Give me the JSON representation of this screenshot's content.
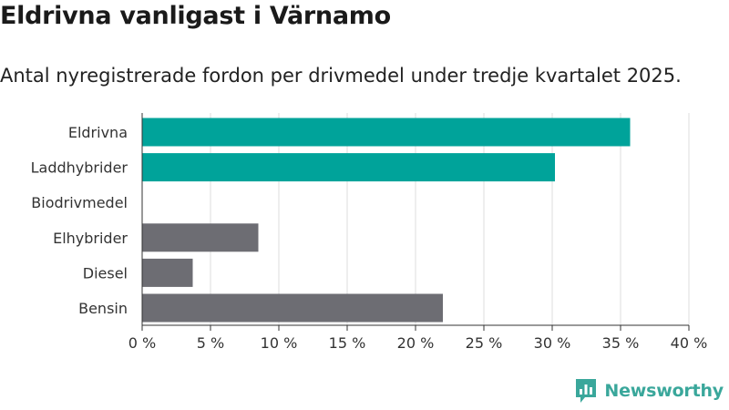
{
  "title": "Eldrivna vanligast i Värnamo",
  "subtitle": "Antal nyregistrerade fordon per drivmedel under tredje kvartalet 2025.",
  "brand": {
    "name": "Newsworthy",
    "icon": "newsworthy-logo-icon"
  },
  "colors": {
    "highlight": "#00a39a",
    "other": "#6d6d73",
    "grid": "#dcdcdc",
    "axis": "#333333"
  },
  "chart_data": {
    "type": "bar",
    "orientation": "horizontal",
    "categories": [
      "Eldrivna",
      "Laddhybrider",
      "Biodrivmedel",
      "Elhybrider",
      "Diesel",
      "Bensin"
    ],
    "values": [
      35.7,
      30.2,
      0,
      8.5,
      3.7,
      22.0
    ],
    "highlighted": [
      true,
      true,
      true,
      false,
      false,
      false
    ],
    "xlim": [
      0,
      40
    ],
    "xticks": [
      0,
      5,
      10,
      15,
      20,
      25,
      30,
      35,
      40
    ],
    "xtick_labels": [
      "0 %",
      "5 %",
      "10 %",
      "15 %",
      "20 %",
      "25 %",
      "30 %",
      "35 %",
      "40 %"
    ],
    "grid": true
  }
}
